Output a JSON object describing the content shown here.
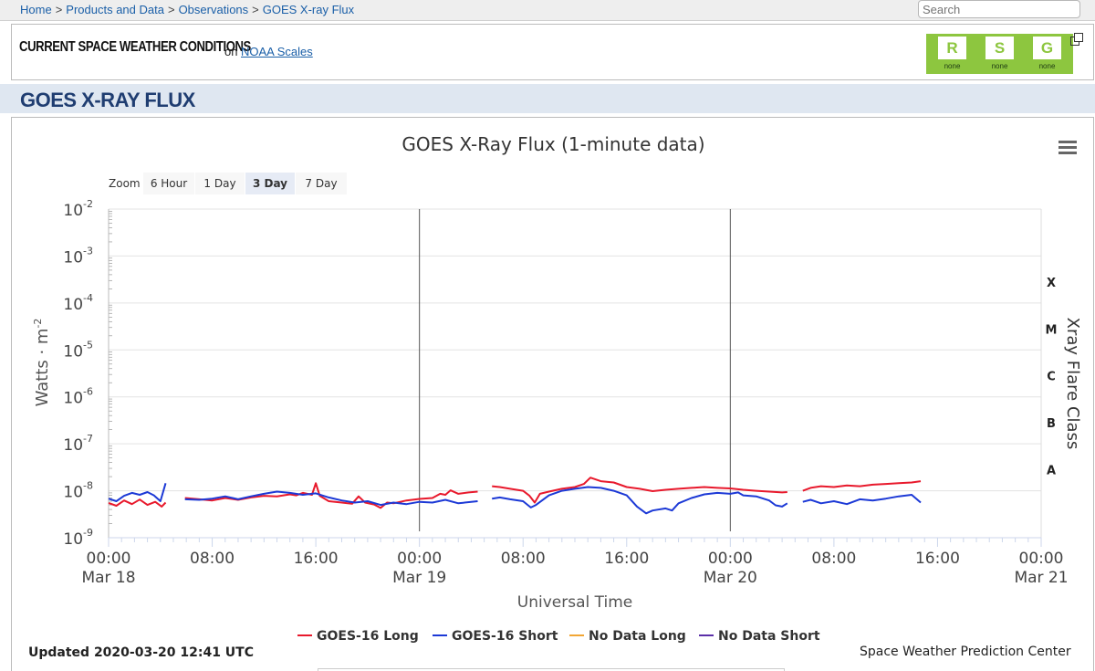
{
  "breadcrumb": {
    "items": [
      "Home",
      "Products and Data",
      "Observations",
      "GOES X-ray Flux"
    ],
    "separator": ">"
  },
  "search": {
    "placeholder": "Search"
  },
  "conditions": {
    "title": "CURRENT SPACE WEATHER CONDITIONS",
    "on_text": "on",
    "link_text": "NOAA Scales",
    "scales": [
      {
        "letter": "R",
        "status": "none",
        "color": "#8dc63f"
      },
      {
        "letter": "S",
        "status": "none",
        "color": "#8dc63f"
      },
      {
        "letter": "G",
        "status": "none",
        "color": "#8dc63f"
      }
    ],
    "popout_icon": "external-window-icon"
  },
  "page": {
    "title": "GOES X-RAY FLUX"
  },
  "menu_icon": "hamburger-menu-icon",
  "zoom": {
    "label": "Zoom",
    "buttons": [
      "6 Hour",
      "1 Day",
      "3 Day",
      "7 Day"
    ],
    "active": "3 Day"
  },
  "footer": {
    "updated": "Updated 2020-03-20 12:41 UTC",
    "credit": "Space Weather Prediction Center"
  },
  "chart_data": {
    "type": "line",
    "title": "GOES X-Ray Flux (1-minute data)",
    "xlabel": "Universal Time",
    "ylabel": "Watts · m",
    "ylabel_superscript": "-2",
    "y2label": "Xray Flare Class",
    "y_scale": "log",
    "ylim": [
      1e-09,
      0.01
    ],
    "y_ticks": [
      {
        "base": "10",
        "exp": "-2",
        "value": 0.01
      },
      {
        "base": "10",
        "exp": "-3",
        "value": 0.001
      },
      {
        "base": "10",
        "exp": "-4",
        "value": 0.0001
      },
      {
        "base": "10",
        "exp": "-5",
        "value": 1e-05
      },
      {
        "base": "10",
        "exp": "-6",
        "value": 1e-06
      },
      {
        "base": "10",
        "exp": "-7",
        "value": 1e-07
      },
      {
        "base": "10",
        "exp": "-8",
        "value": 1e-08
      },
      {
        "base": "10",
        "exp": "-9",
        "value": 1e-09
      }
    ],
    "flare_classes": [
      {
        "label": "X",
        "value": 0.0001
      },
      {
        "label": "M",
        "value": 1e-05
      },
      {
        "label": "C",
        "value": 1e-06
      },
      {
        "label": "B",
        "value": 1e-07
      },
      {
        "label": "A",
        "value": 1e-08
      }
    ],
    "x_unit": "hours since 2020-03-18 00:00 UTC",
    "xlim": [
      0,
      72
    ],
    "x_ticks": [
      {
        "value": 0,
        "time": "00:00",
        "date": "Mar 18"
      },
      {
        "value": 8,
        "time": "08:00",
        "date": ""
      },
      {
        "value": 16,
        "time": "16:00",
        "date": ""
      },
      {
        "value": 24,
        "time": "00:00",
        "date": "Mar 19"
      },
      {
        "value": 32,
        "time": "08:00",
        "date": ""
      },
      {
        "value": 40,
        "time": "16:00",
        "date": ""
      },
      {
        "value": 48,
        "time": "00:00",
        "date": "Mar 20"
      },
      {
        "value": 56,
        "time": "08:00",
        "date": ""
      },
      {
        "value": 64,
        "time": "16:00",
        "date": ""
      },
      {
        "value": 72,
        "time": "00:00",
        "date": "Mar 21"
      }
    ],
    "day_lines": [
      24,
      48
    ],
    "legend_position": "bottom-center",
    "series": [
      {
        "name": "GOES-16 Long",
        "color": "#e8192c",
        "segments": [
          [
            [
              0,
              5.5e-09
            ],
            [
              0.6,
              4.8e-09
            ],
            [
              1.2,
              6.2e-09
            ],
            [
              1.8,
              5.2e-09
            ],
            [
              2.4,
              6.5e-09
            ],
            [
              3,
              5e-09
            ],
            [
              3.6,
              5.8e-09
            ],
            [
              4.1,
              4.6e-09
            ],
            [
              4.4,
              5.6e-09
            ]
          ],
          [
            [
              5.9,
              7e-09
            ],
            [
              7,
              6.6e-09
            ],
            [
              8,
              6.2e-09
            ],
            [
              9,
              7e-09
            ],
            [
              10,
              6.4e-09
            ],
            [
              11,
              7.2e-09
            ],
            [
              12,
              7.8e-09
            ],
            [
              13,
              7.6e-09
            ],
            [
              14,
              8.4e-09
            ],
            [
              14.5,
              8e-09
            ],
            [
              15,
              9e-09
            ],
            [
              15.7,
              8.2e-09
            ],
            [
              16,
              1.45e-08
            ],
            [
              16.3,
              7.8e-09
            ],
            [
              17,
              6e-09
            ],
            [
              18,
              5.6e-09
            ],
            [
              18.8,
              5.3e-09
            ],
            [
              19.3,
              7.6e-09
            ],
            [
              19.8,
              5.6e-09
            ],
            [
              20.5,
              5.1e-09
            ],
            [
              21,
              4.3e-09
            ],
            [
              21.5,
              5.6e-09
            ],
            [
              22,
              5.4e-09
            ],
            [
              23,
              6.2e-09
            ],
            [
              24,
              6.7e-09
            ],
            [
              25,
              7e-09
            ],
            [
              25.6,
              8.6e-09
            ],
            [
              26,
              8.2e-09
            ],
            [
              26.4,
              1.02e-08
            ],
            [
              27,
              8.6e-09
            ],
            [
              27.8,
              9.2e-09
            ],
            [
              28.5,
              9.6e-09
            ]
          ],
          [
            [
              29.6,
              1.25e-08
            ],
            [
              30.2,
              1.2e-08
            ],
            [
              31,
              1.1e-08
            ],
            [
              32,
              1e-08
            ],
            [
              32.5,
              7.8e-09
            ],
            [
              32.9,
              5.6e-09
            ],
            [
              33.3,
              8.6e-09
            ],
            [
              34,
              9.6e-09
            ],
            [
              35,
              1.1e-08
            ],
            [
              36,
              1.2e-08
            ],
            [
              36.7,
              1.4e-08
            ],
            [
              37.2,
              1.9e-08
            ],
            [
              38,
              1.6e-08
            ],
            [
              39,
              1.5e-08
            ],
            [
              40,
              1.2e-08
            ],
            [
              41,
              1.1e-08
            ],
            [
              42,
              9.8e-09
            ],
            [
              43,
              1.05e-08
            ],
            [
              44,
              1.1e-08
            ],
            [
              45,
              1.15e-08
            ],
            [
              46,
              1.2e-08
            ],
            [
              47,
              1.15e-08
            ],
            [
              48,
              1.12e-08
            ],
            [
              49,
              1.05e-08
            ],
            [
              50,
              1e-08
            ],
            [
              51,
              9.6e-09
            ],
            [
              52,
              9.2e-09
            ],
            [
              52.4,
              9.4e-09
            ]
          ],
          [
            [
              53.6,
              1e-08
            ],
            [
              54.2,
              1.15e-08
            ],
            [
              55,
              1.25e-08
            ],
            [
              56,
              1.2e-08
            ],
            [
              57,
              1.3e-08
            ],
            [
              58,
              1.25e-08
            ],
            [
              59,
              1.35e-08
            ],
            [
              60,
              1.4e-08
            ],
            [
              61,
              1.45e-08
            ],
            [
              62,
              1.5e-08
            ],
            [
              62.7,
              1.6e-08
            ]
          ]
        ]
      },
      {
        "name": "GOES-16 Short",
        "color": "#1c39d6",
        "segments": [
          [
            [
              0,
              6.8e-09
            ],
            [
              0.6,
              6e-09
            ],
            [
              1.2,
              7.8e-09
            ],
            [
              1.8,
              9e-09
            ],
            [
              2.4,
              8.2e-09
            ],
            [
              3,
              9.4e-09
            ],
            [
              3.5,
              8e-09
            ],
            [
              4,
              6e-09
            ],
            [
              4.4,
              1.45e-08
            ]
          ],
          [
            [
              5.9,
              6.6e-09
            ],
            [
              7,
              6.4e-09
            ],
            [
              8,
              6.8e-09
            ],
            [
              9,
              7.6e-09
            ],
            [
              10,
              6.6e-09
            ],
            [
              11,
              7.6e-09
            ],
            [
              12,
              8.6e-09
            ],
            [
              13,
              9.6e-09
            ],
            [
              14,
              9e-09
            ],
            [
              15,
              8.2e-09
            ],
            [
              16,
              8.8e-09
            ],
            [
              17,
              7.2e-09
            ],
            [
              18,
              6.2e-09
            ],
            [
              19,
              5.6e-09
            ],
            [
              20,
              6e-09
            ],
            [
              21,
              5e-09
            ],
            [
              22,
              5.6e-09
            ],
            [
              23,
              5.2e-09
            ],
            [
              24,
              5.8e-09
            ],
            [
              25,
              5.6e-09
            ],
            [
              26,
              6.4e-09
            ],
            [
              27,
              5.4e-09
            ],
            [
              28.5,
              6e-09
            ]
          ],
          [
            [
              29.6,
              6.8e-09
            ],
            [
              30.2,
              7.2e-09
            ],
            [
              31,
              6.6e-09
            ],
            [
              32,
              6e-09
            ],
            [
              32.6,
              4.4e-09
            ],
            [
              33,
              5e-09
            ],
            [
              34,
              8e-09
            ],
            [
              35,
              1e-08
            ],
            [
              36,
              1.1e-08
            ],
            [
              37,
              1.2e-08
            ],
            [
              38,
              1.15e-08
            ],
            [
              39,
              1e-08
            ],
            [
              40,
              8e-09
            ],
            [
              40.8,
              4.6e-09
            ],
            [
              41.5,
              3.3e-09
            ],
            [
              42,
              3.8e-09
            ],
            [
              43,
              4.2e-09
            ],
            [
              43.5,
              3.8e-09
            ],
            [
              44,
              5.4e-09
            ],
            [
              45,
              7e-09
            ],
            [
              46,
              8.4e-09
            ],
            [
              47,
              9e-09
            ],
            [
              48,
              8.6e-09
            ],
            [
              48.6,
              9.2e-09
            ],
            [
              49,
              8e-09
            ],
            [
              50,
              7.6e-09
            ],
            [
              51,
              6.2e-09
            ],
            [
              51.5,
              4.9e-09
            ],
            [
              52,
              4.6e-09
            ],
            [
              52.4,
              5.4e-09
            ]
          ],
          [
            [
              53.6,
              5.8e-09
            ],
            [
              54.2,
              6.4e-09
            ],
            [
              55,
              5.4e-09
            ],
            [
              56,
              6e-09
            ],
            [
              57,
              5.2e-09
            ],
            [
              58,
              6.6e-09
            ],
            [
              59,
              6.2e-09
            ],
            [
              60,
              6.8e-09
            ],
            [
              61,
              7.6e-09
            ],
            [
              62,
              8.2e-09
            ],
            [
              62.7,
              5.6e-09
            ]
          ]
        ]
      },
      {
        "name": "No Data Long",
        "color": "#f2a634",
        "segments": []
      },
      {
        "name": "No Data Short",
        "color": "#5b2fa8",
        "segments": []
      }
    ]
  }
}
